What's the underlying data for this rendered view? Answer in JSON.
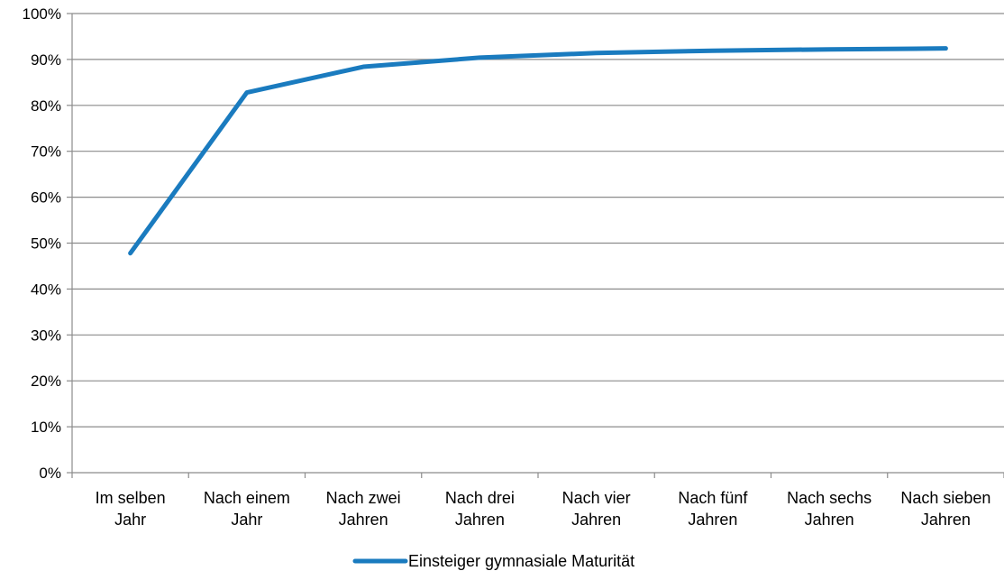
{
  "chart_data": {
    "type": "line",
    "title": "",
    "xlabel": "",
    "ylabel": "",
    "ylim": [
      0,
      100
    ],
    "yticks": [
      "0%",
      "10%",
      "20%",
      "30%",
      "40%",
      "50%",
      "60%",
      "70%",
      "80%",
      "90%",
      "100%"
    ],
    "grid": true,
    "legend_position": "bottom",
    "categories": [
      [
        "Im selben",
        "Jahr"
      ],
      [
        "Nach einem",
        "Jahr"
      ],
      [
        "Nach zwei",
        "Jahren"
      ],
      [
        "Nach drei",
        "Jahren"
      ],
      [
        "Nach vier",
        "Jahren"
      ],
      [
        "Nach fünf",
        "Jahren"
      ],
      [
        "Nach sechs",
        "Jahren"
      ],
      [
        "Nach sieben",
        "Jahren"
      ]
    ],
    "series": [
      {
        "name": "Einsteiger gymnasiale Maturität",
        "color": "#1a7bbf",
        "values": [
          47.8,
          82.8,
          88.4,
          90.4,
          91.4,
          91.9,
          92.2,
          92.4
        ]
      }
    ]
  }
}
